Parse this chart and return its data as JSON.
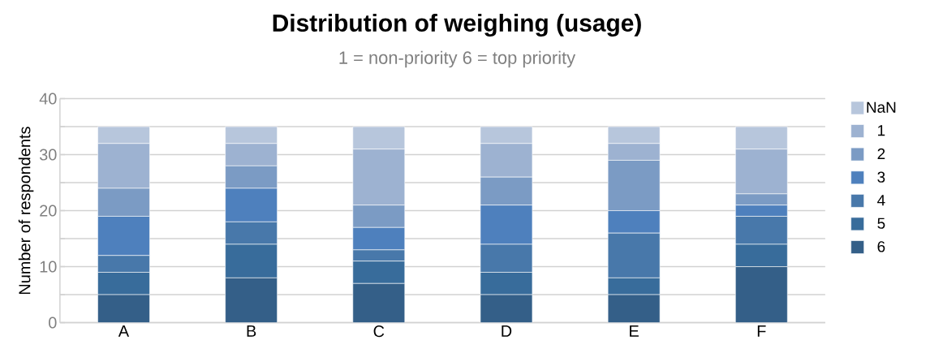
{
  "chart_data": {
    "type": "bar",
    "stacked": true,
    "title": "Distribution of weighing (usage)",
    "subtitle": "1 = non-priority      6 = top priority",
    "ylabel": "Number of respondents",
    "categories": [
      "A",
      "B",
      "C",
      "D",
      "E",
      "F"
    ],
    "series": [
      {
        "name": "6",
        "color": "#345f88",
        "values": [
          5,
          8,
          7,
          5,
          5,
          10
        ]
      },
      {
        "name": "5",
        "color": "#386c9b",
        "values": [
          4,
          6,
          4,
          4,
          3,
          4
        ]
      },
      {
        "name": "4",
        "color": "#4878aa",
        "values": [
          3,
          4,
          2,
          5,
          8,
          5
        ]
      },
      {
        "name": "3",
        "color": "#4e80bd",
        "values": [
          7,
          6,
          4,
          7,
          4,
          2
        ]
      },
      {
        "name": "2",
        "color": "#7b9bc4",
        "values": [
          5,
          4,
          4,
          5,
          9,
          2
        ]
      },
      {
        "name": "1",
        "color": "#9db2d1",
        "values": [
          8,
          4,
          10,
          6,
          3,
          8
        ]
      },
      {
        "name": "NaN",
        "color": "#b7c6dc",
        "values": [
          3,
          3,
          4,
          3,
          3,
          4
        ]
      }
    ],
    "ylim": [
      0,
      40
    ],
    "yticks": [
      0,
      {
        "value": 5,
        "label": null
      },
      10,
      {
        "value": 15,
        "label": null
      },
      20,
      {
        "value": 25,
        "label": null
      },
      30,
      {
        "value": 35,
        "label": null
      },
      40
    ],
    "grid": "y",
    "legend": "right"
  }
}
